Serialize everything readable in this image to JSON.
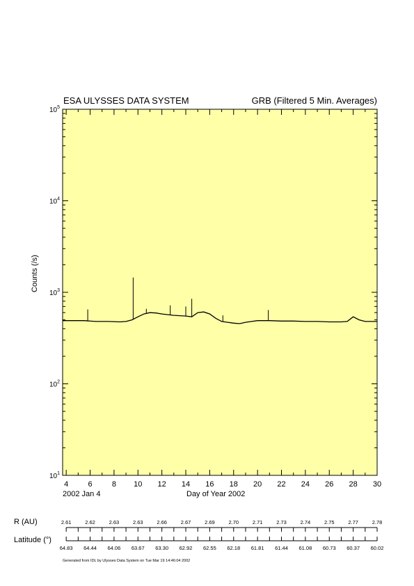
{
  "header": {
    "left_title": "ESA ULYSSES DATA SYSTEM",
    "right_title": "GRB (Filtered 5 Min. Averages)"
  },
  "date_label": "2002 Jan  4",
  "footer": "Generated from IDL by Ulysses Data System on Tue Mar 19 14:46:04 2002",
  "colors": {
    "plot_background": "#ffffa8",
    "line": "#000000"
  },
  "chart_data": {
    "type": "line",
    "title": "GRB (Filtered 5 Min. Averages)",
    "xlabel": "Day of Year 2002",
    "ylabel": "Counts (/s)",
    "yscale": "log",
    "xlim": [
      3.7,
      30
    ],
    "ylim": [
      10,
      100000
    ],
    "x_ticks": [
      4,
      6,
      8,
      10,
      12,
      14,
      16,
      18,
      20,
      22,
      24,
      26,
      28,
      30
    ],
    "y_ticks": [
      10,
      100,
      1000,
      10000,
      100000
    ],
    "grid": false,
    "series": [
      {
        "x": [
          3.7,
          4.5,
          5.5,
          6.5,
          7.5,
          8.5,
          9.0,
          9.5,
          10.0,
          10.5,
          11.0,
          11.5,
          12.0,
          12.5,
          13.0,
          13.5,
          14.0,
          14.5,
          15.0,
          15.5,
          16.0,
          16.5,
          17.0,
          17.5,
          18.0,
          18.5,
          19.0,
          19.5,
          20.0,
          21.0,
          22.0,
          23.0,
          24.0,
          25.0,
          26.0,
          27.0,
          27.5,
          28.0,
          28.5,
          29.0,
          30.0
        ],
        "y": [
          490,
          490,
          490,
          480,
          480,
          475,
          480,
          500,
          540,
          580,
          600,
          595,
          580,
          570,
          560,
          555,
          550,
          540,
          600,
          610,
          580,
          520,
          480,
          470,
          460,
          455,
          470,
          480,
          490,
          490,
          485,
          485,
          480,
          480,
          475,
          475,
          480,
          540,
          500,
          480,
          480
        ]
      }
    ],
    "spikes": [
      {
        "x": 5.8,
        "y": 650
      },
      {
        "x": 9.6,
        "y": 1450
      },
      {
        "x": 10.7,
        "y": 660
      },
      {
        "x": 12.7,
        "y": 720
      },
      {
        "x": 14.0,
        "y": 700
      },
      {
        "x": 14.5,
        "y": 850
      },
      {
        "x": 17.1,
        "y": 560
      },
      {
        "x": 20.9,
        "y": 640
      }
    ]
  },
  "ancillary_axis": {
    "r_label": "R (AU)",
    "r_values": [
      "2.61",
      "2.62",
      "2.63",
      "2.63",
      "2.66",
      "2.67",
      "2.69",
      "2.70",
      "2.71",
      "2.73",
      "2.74",
      "2.75",
      "2.77",
      "2.78"
    ],
    "lat_label": "Latitude (°)",
    "lat_values": [
      "64.83",
      "64.44",
      "64.06",
      "63.67",
      "63.30",
      "62.92",
      "62.55",
      "62.18",
      "61.81",
      "61.44",
      "61.08",
      "60.73",
      "60.37",
      "60.02"
    ]
  }
}
